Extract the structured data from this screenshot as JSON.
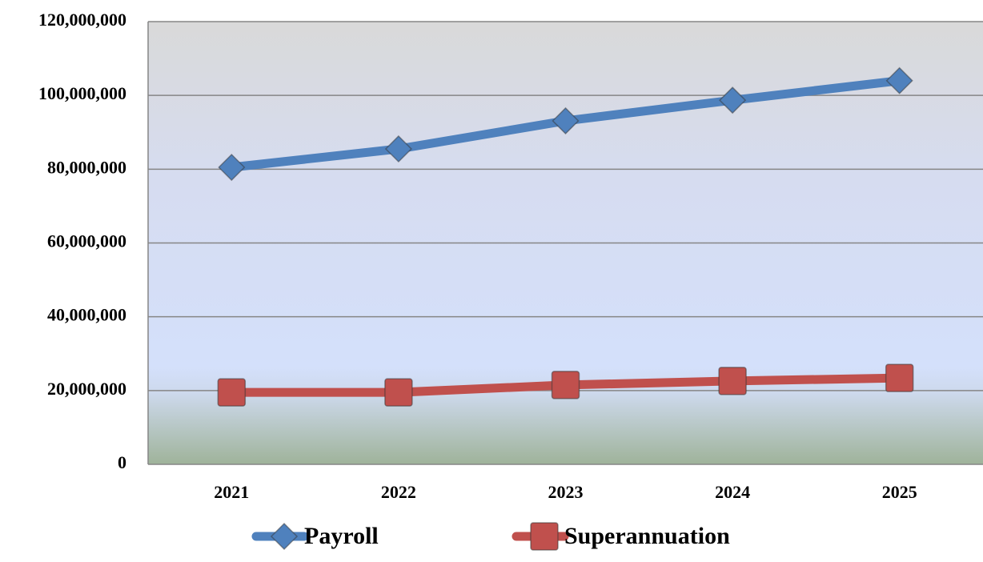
{
  "chart_data": {
    "type": "line",
    "categories": [
      "2021",
      "2022",
      "2023",
      "2024",
      "2025"
    ],
    "series": [
      {
        "name": "Payroll",
        "color": "#4f81bd",
        "marker": "diamond",
        "values": [
          80500000,
          85500000,
          93100000,
          98700000,
          104000000
        ]
      },
      {
        "name": "Superannuation",
        "color": "#c0504d",
        "marker": "square",
        "values": [
          19500000,
          19500000,
          21500000,
          22600000,
          23400000
        ]
      }
    ],
    "ylim": [
      0,
      120000000
    ],
    "yticks": [
      0,
      {
        "value": 20000000,
        "label": "20,000,000"
      },
      {
        "value": 40000000,
        "label": "40,000,000"
      },
      {
        "value": 60000000,
        "label": "60,000,000"
      },
      {
        "value": 80000000,
        "label": "80,000,000"
      },
      {
        "value": 100000000,
        "label": "100,000,000"
      },
      {
        "value": 120000000,
        "label": "120,000,000"
      }
    ],
    "grid": true,
    "legend": "bottom"
  }
}
